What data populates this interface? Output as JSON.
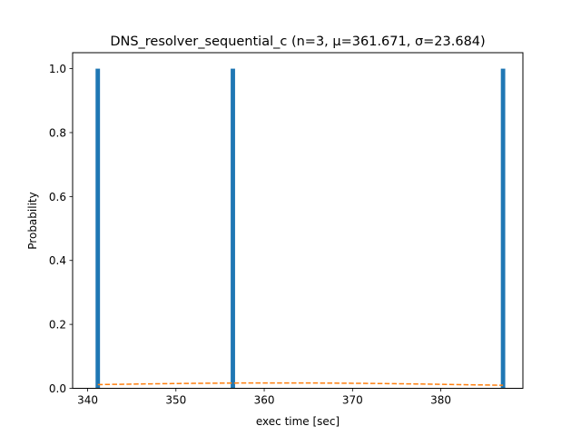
{
  "chart_data": {
    "type": "bar",
    "title": "DNS_resolver_sequential_c (n=3, μ=361.671, σ=23.684)",
    "xlabel": "exec time [sec]",
    "ylabel": "Probability",
    "xlim": [
      338.3,
      389.3
    ],
    "ylim": [
      0,
      1.05
    ],
    "xticks": [
      340,
      350,
      360,
      370,
      380
    ],
    "yticks": [
      0.0,
      0.2,
      0.4,
      0.6,
      0.8,
      1.0
    ],
    "bar_color": "#1f77b4",
    "bars": [
      {
        "x_start": 340.9,
        "x_end": 341.4,
        "value": 1.0
      },
      {
        "x_start": 356.2,
        "x_end": 356.7,
        "value": 1.0
      },
      {
        "x_start": 386.8,
        "x_end": 387.3,
        "value": 1.0
      }
    ],
    "curve": {
      "style": "dashed",
      "color": "#ff7f0e",
      "mu": 361.671,
      "sigma": 23.684,
      "x_range": [
        341.15,
        387.05
      ]
    },
    "grid": false
  }
}
